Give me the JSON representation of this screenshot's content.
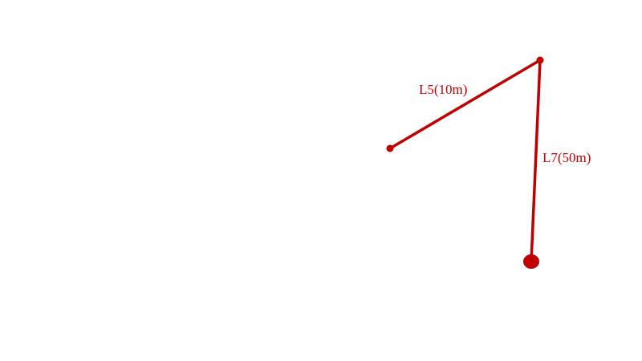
{
  "color": "#c00000",
  "segments": [
    {
      "label": "L5(10m)"
    },
    {
      "label": "L7(50m)"
    }
  ]
}
